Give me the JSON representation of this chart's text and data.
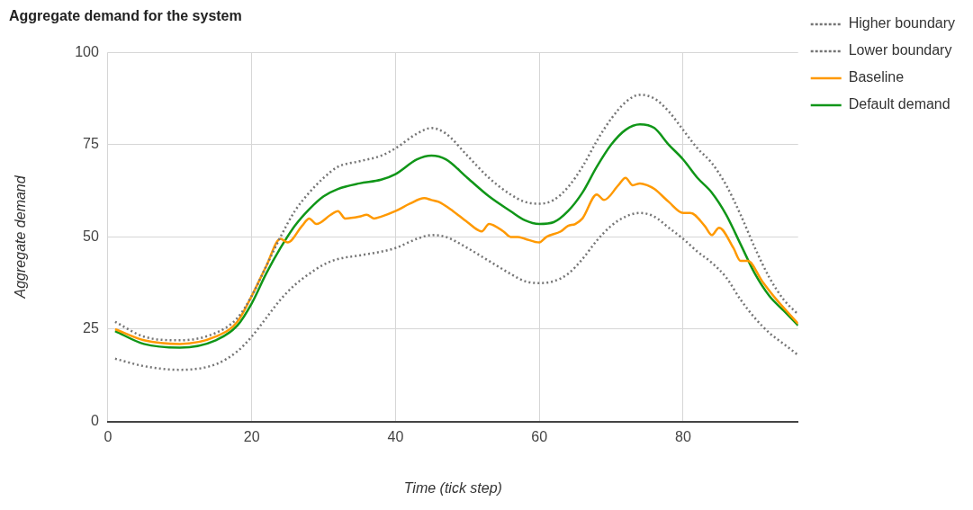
{
  "chart_data": {
    "type": "line",
    "title": "Aggregate demand for the system",
    "xlabel": "Time (tick step)",
    "ylabel": "Aggregate demand",
    "xlim": [
      0,
      96
    ],
    "xticks": [
      0,
      20,
      40,
      60,
      80
    ],
    "ylim": [
      0,
      100
    ],
    "yticks": [
      0,
      25,
      50,
      75,
      100
    ],
    "grid": true,
    "legend": "right",
    "marker": "none",
    "series": [
      {
        "name": "Higher boundary",
        "color": "#757575",
        "line_style": "dotted",
        "x": [
          1,
          5,
          10,
          15,
          18,
          20,
          22,
          24,
          26,
          28,
          30,
          32,
          35,
          38,
          40,
          43,
          45,
          47,
          50,
          53,
          56,
          58,
          60,
          62,
          64,
          66,
          68,
          70,
          72,
          74,
          76,
          78,
          80,
          82,
          84,
          86,
          88,
          90,
          92,
          94,
          96
        ],
        "values": [
          27,
          23,
          22,
          24,
          28,
          34,
          42,
          50,
          57,
          62,
          66,
          69,
          70.5,
          72,
          74,
          78,
          79.5,
          78,
          72,
          66,
          61.5,
          59.5,
          59,
          60,
          63.5,
          69,
          76,
          82,
          86.5,
          88.5,
          87.5,
          84,
          79,
          74,
          70,
          64,
          56,
          47,
          39,
          33,
          29
        ]
      },
      {
        "name": "Lower boundary",
        "color": "#757575",
        "line_style": "dotted",
        "x": [
          1,
          5,
          10,
          15,
          18,
          20,
          22,
          24,
          26,
          28,
          30,
          32,
          35,
          38,
          40,
          43,
          45,
          47,
          50,
          53,
          56,
          58,
          60,
          62,
          64,
          66,
          68,
          70,
          72,
          74,
          76,
          78,
          80,
          82,
          84,
          86,
          88,
          90,
          92,
          94,
          96
        ],
        "values": [
          17,
          15,
          14,
          15.5,
          19,
          23,
          28,
          33,
          37,
          40,
          42.5,
          44,
          45,
          46,
          47,
          49.5,
          50.5,
          50,
          47,
          43.5,
          40,
          38,
          37.5,
          38,
          40,
          44,
          49,
          53,
          55.5,
          56.5,
          55.5,
          52.5,
          49.5,
          46,
          43,
          39,
          33,
          28,
          24,
          21,
          18
        ]
      },
      {
        "name": "Baseline",
        "color": "#ff9900",
        "line_style": "solid",
        "x": [
          1,
          5,
          10,
          15,
          18,
          20,
          22,
          24,
          25,
          27,
          28,
          29,
          31,
          32,
          33,
          35,
          36,
          37,
          38,
          40,
          42,
          44,
          45,
          46,
          48,
          50,
          52,
          53,
          55,
          56,
          57,
          58,
          60,
          61,
          63,
          64,
          65,
          66,
          68,
          69,
          71,
          72,
          73,
          74,
          75,
          76,
          78,
          80,
          81,
          83,
          84,
          85,
          87,
          88,
          89,
          91,
          93,
          96
        ],
        "values": [
          25,
          22,
          21,
          23,
          27,
          34,
          42,
          49.5,
          48.5,
          53,
          55,
          53.5,
          56,
          57,
          55,
          55.5,
          56,
          55,
          55.5,
          57,
          59,
          60.5,
          60,
          59.5,
          57,
          54,
          51.5,
          53.5,
          51.5,
          50,
          50,
          49.5,
          48.5,
          50,
          51.5,
          53,
          53.5,
          55,
          61.5,
          60,
          64,
          66,
          64,
          64.5,
          64,
          63,
          59.5,
          56.5,
          56.5,
          53,
          50.5,
          52.5,
          47,
          43.5,
          43.5,
          38,
          33,
          26.5
        ]
      },
      {
        "name": "Default demand",
        "color": "#109618",
        "line_style": "solid",
        "x": [
          1,
          5,
          10,
          15,
          18,
          20,
          22,
          24,
          26,
          28,
          30,
          32,
          35,
          38,
          40,
          43,
          45,
          47,
          50,
          53,
          56,
          58,
          60,
          62,
          64,
          66,
          68,
          70,
          72,
          74,
          76,
          78,
          80,
          82,
          84,
          86,
          88,
          90,
          92,
          94,
          96
        ],
        "values": [
          24.5,
          21,
          20,
          22,
          26,
          32,
          40,
          47,
          53,
          57.5,
          61,
          63,
          64.5,
          65.5,
          67,
          71,
          72,
          71,
          66,
          61,
          57,
          54.5,
          53.5,
          54,
          57,
          62,
          69,
          75,
          79,
          80.5,
          79.5,
          75,
          71,
          66,
          62,
          56,
          48,
          40,
          34,
          30,
          26
        ]
      }
    ]
  }
}
